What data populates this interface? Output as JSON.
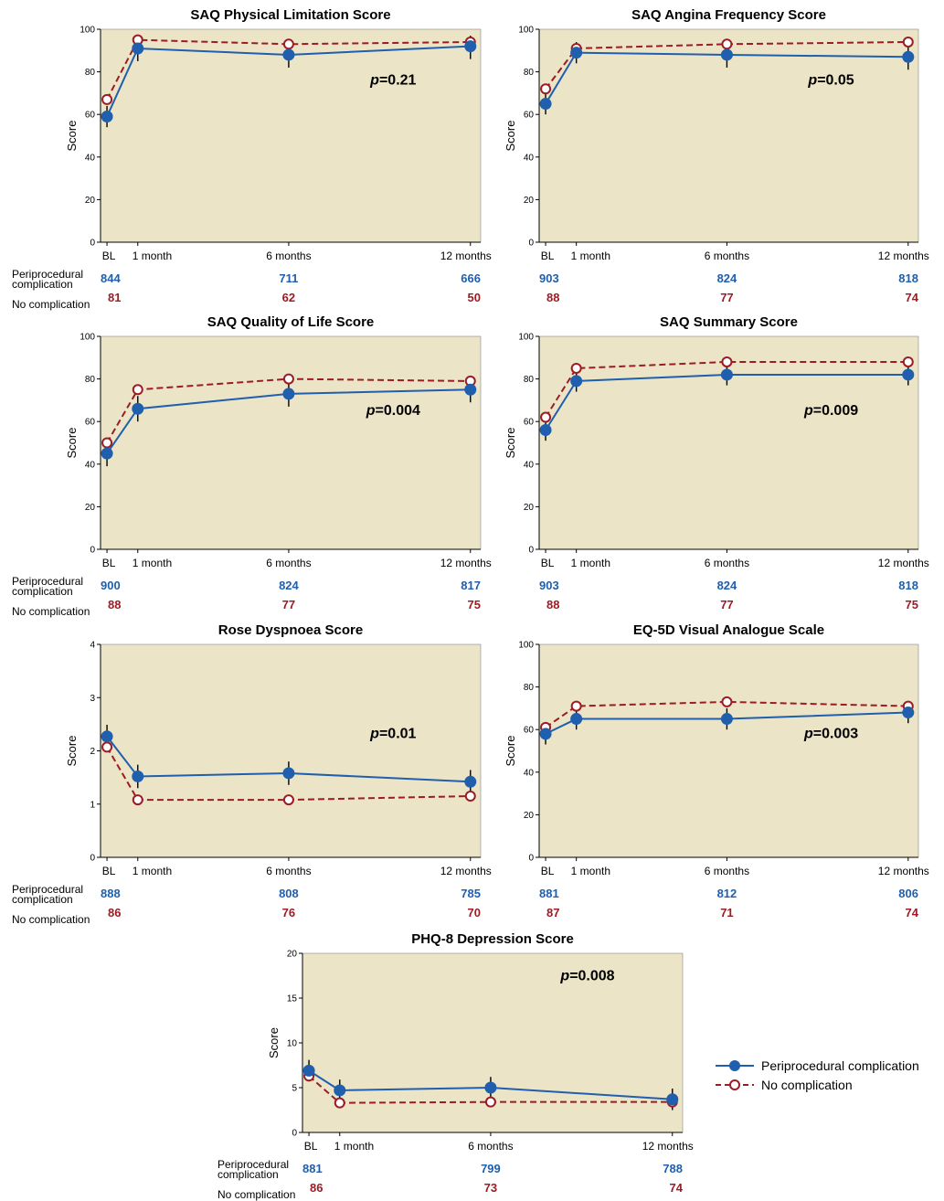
{
  "colors": {
    "panel_bg": "#ebe4c6",
    "complication": "#1f5fae",
    "no_complication": "#9c1c24"
  },
  "row_labels": {
    "complication_line1": "Periprocedural",
    "complication_line2": "complication",
    "no_complication": "No complication"
  },
  "legend": {
    "complication": "Periprocedural complication",
    "no_complication": "No complication"
  },
  "chart_data": [
    {
      "type": "line",
      "title": "SAQ Physical Limitation Score",
      "ylabel": "Score",
      "ylim": [
        0,
        100
      ],
      "yticks": [
        "0",
        "20",
        "40",
        "60",
        "80",
        "100"
      ],
      "x_values": [
        0,
        1,
        6,
        12
      ],
      "x_labels": [
        "BL",
        "1 month",
        "6 months",
        "12 months"
      ],
      "p_prefix": "p",
      "p_suffix": "=0.21",
      "series": [
        {
          "name": "Periprocedural complication",
          "values": [
            59,
            91,
            88,
            92
          ],
          "err_lo": [
            54,
            85,
            82,
            86
          ],
          "err_hi": [
            64,
            96,
            93,
            97
          ]
        },
        {
          "name": "No complication",
          "values": [
            67,
            95,
            93,
            94
          ]
        }
      ],
      "n_complication": [
        "844",
        "711",
        "666"
      ],
      "n_no_complication": [
        "81",
        "62",
        "50"
      ]
    },
    {
      "type": "line",
      "title": "SAQ Angina Frequency Score",
      "ylabel": "Score",
      "ylim": [
        0,
        100
      ],
      "yticks": [
        "0",
        "20",
        "40",
        "60",
        "80",
        "100"
      ],
      "x_values": [
        0,
        1,
        6,
        12
      ],
      "x_labels": [
        "BL",
        "1 month",
        "6 months",
        "12 months"
      ],
      "p_prefix": "p",
      "p_suffix": "=0.05",
      "series": [
        {
          "name": "Periprocedural complication",
          "values": [
            65,
            89,
            88,
            87
          ],
          "err_lo": [
            60,
            84,
            82,
            81
          ],
          "err_hi": [
            70,
            94,
            93,
            92
          ]
        },
        {
          "name": "No complication",
          "values": [
            72,
            91,
            93,
            94
          ]
        }
      ],
      "n_complication": [
        "903",
        "824",
        "818"
      ],
      "n_no_complication": [
        "88",
        "77",
        "74"
      ]
    },
    {
      "type": "line",
      "title": "SAQ Quality of Life Score",
      "ylabel": "Score",
      "ylim": [
        0,
        100
      ],
      "yticks": [
        "0",
        "20",
        "40",
        "60",
        "80",
        "100"
      ],
      "x_values": [
        0,
        1,
        6,
        12
      ],
      "x_labels": [
        "BL",
        "1 month",
        "6 months",
        "12 months"
      ],
      "p_prefix": "p",
      "p_suffix": "=0.004",
      "series": [
        {
          "name": "Periprocedural complication",
          "values": [
            45,
            66,
            73,
            75
          ],
          "err_lo": [
            39,
            60,
            67,
            69
          ],
          "err_hi": [
            51,
            72,
            79,
            81
          ]
        },
        {
          "name": "No complication",
          "values": [
            50,
            75,
            80,
            79
          ]
        }
      ],
      "n_complication": [
        "900",
        "824",
        "817"
      ],
      "n_no_complication": [
        "88",
        "77",
        "75"
      ]
    },
    {
      "type": "line",
      "title": "SAQ Summary Score",
      "ylabel": "Score",
      "ylim": [
        0,
        100
      ],
      "yticks": [
        "0",
        "20",
        "40",
        "60",
        "80",
        "100"
      ],
      "x_values": [
        0,
        1,
        6,
        12
      ],
      "x_labels": [
        "BL",
        "1 month",
        "6 months",
        "12 months"
      ],
      "p_prefix": "p",
      "p_suffix": "=0.009",
      "series": [
        {
          "name": "Periprocedural complication",
          "values": [
            56,
            79,
            82,
            82
          ],
          "err_lo": [
            51,
            74,
            77,
            77
          ],
          "err_hi": [
            61,
            84,
            87,
            87
          ]
        },
        {
          "name": "No complication",
          "values": [
            62,
            85,
            88,
            88
          ]
        }
      ],
      "n_complication": [
        "903",
        "824",
        "818"
      ],
      "n_no_complication": [
        "88",
        "77",
        "75"
      ]
    },
    {
      "type": "line",
      "title": "Rose Dyspnoea Score",
      "ylabel": "Score",
      "ylim": [
        0,
        4
      ],
      "yticks": [
        "0",
        "1",
        "2",
        "3",
        "4"
      ],
      "x_values": [
        0,
        1,
        6,
        12
      ],
      "x_labels": [
        "BL",
        "1 month",
        "6 months",
        "12 months"
      ],
      "p_prefix": "p",
      "p_suffix": "=0.01",
      "series": [
        {
          "name": "Periprocedural complication",
          "values": [
            2.27,
            1.52,
            1.58,
            1.42
          ],
          "err_lo": [
            2.05,
            1.3,
            1.36,
            1.2
          ],
          "err_hi": [
            2.49,
            1.74,
            1.8,
            1.64
          ]
        },
        {
          "name": "No complication",
          "values": [
            2.07,
            1.08,
            1.08,
            1.15
          ]
        }
      ],
      "n_complication": [
        "888",
        "808",
        "785"
      ],
      "n_no_complication": [
        "86",
        "76",
        "70"
      ]
    },
    {
      "type": "line",
      "title": "EQ-5D Visual Analogue Scale",
      "ylabel": "Score",
      "ylim": [
        0,
        100
      ],
      "yticks": [
        "0",
        "20",
        "40",
        "60",
        "80",
        "100"
      ],
      "x_values": [
        0,
        1,
        6,
        12
      ],
      "x_labels": [
        "BL",
        "1 month",
        "6 months",
        "12 months"
      ],
      "p_prefix": "p",
      "p_suffix": "=0.003",
      "series": [
        {
          "name": "Periprocedural complication",
          "values": [
            58,
            65,
            65,
            68
          ],
          "err_lo": [
            53,
            60,
            60,
            63
          ],
          "err_hi": [
            63,
            70,
            70,
            73
          ]
        },
        {
          "name": "No complication",
          "values": [
            61,
            71,
            73,
            71
          ]
        }
      ],
      "n_complication": [
        "881",
        "812",
        "806"
      ],
      "n_no_complication": [
        "87",
        "71",
        "74"
      ]
    },
    {
      "type": "line",
      "title": "PHQ-8 Depression Score",
      "ylabel": "Score",
      "ylim": [
        0,
        20
      ],
      "yticks": [
        "0",
        "5",
        "10",
        "15",
        "20"
      ],
      "x_values": [
        0,
        1,
        6,
        12
      ],
      "x_labels": [
        "BL",
        "1 month",
        "6 months",
        "12 months"
      ],
      "p_prefix": "p",
      "p_suffix": "=0.008",
      "series": [
        {
          "name": "Periprocedural complication",
          "values": [
            6.9,
            4.7,
            5.0,
            3.7
          ],
          "err_lo": [
            5.7,
            3.5,
            3.8,
            2.5
          ],
          "err_hi": [
            8.1,
            5.9,
            6.2,
            4.9
          ]
        },
        {
          "name": "No complication",
          "values": [
            6.3,
            3.3,
            3.4,
            3.4
          ]
        }
      ],
      "n_complication": [
        "881",
        "799",
        "788"
      ],
      "n_no_complication": [
        "86",
        "73",
        "74"
      ]
    }
  ]
}
